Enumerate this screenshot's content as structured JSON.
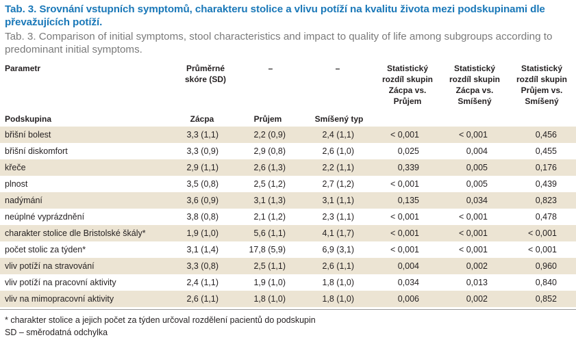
{
  "title": "Tab. 3. Srovnání vstupních symptomů, charakteru stolice a vlivu potíží na kvalitu života mezi podskupinami dle převažujících potíží.",
  "subtitle": "Tab. 3. Comparison of initial symptoms, stool characteristics and impact to quality of life among subgroups according to predominant initial symptoms.",
  "header": {
    "parametr": "Parametr",
    "score_l1": "Průměrné",
    "score_l2": "skóre (SD)",
    "dash1": "–",
    "dash2": "–",
    "stat1": [
      "Statistický",
      "rozdíl skupin",
      "Zácpa vs.",
      "Průjem"
    ],
    "stat2": [
      "Statistický",
      "rozdíl skupin",
      "Zácpa vs.",
      "Smíšený"
    ],
    "stat3": [
      "Statistický",
      "rozdíl skupin",
      "Průjem vs.",
      "Smíšený"
    ],
    "podskupina": "Podskupina",
    "zacpa": "Zácpa",
    "prujem": "Průjem",
    "smiseny": "Smíšený typ"
  },
  "rows": [
    {
      "param": "břišní bolest",
      "zacpa": "3,3 (1,1)",
      "prujem": "2,2 (0,9)",
      "smiseny": "2,4 (1,1)",
      "p1": "< 0,001",
      "p2": "< 0,001",
      "p3": "0,456"
    },
    {
      "param": "břišní diskomfort",
      "zacpa": "3,3 (0,9)",
      "prujem": "2,9 (0,8)",
      "smiseny": "2,6 (1,0)",
      "p1": "0,025",
      "p2": "0,004",
      "p3": "0,455"
    },
    {
      "param": "křeče",
      "zacpa": "2,9 (1,1)",
      "prujem": "2,6 (1,3)",
      "smiseny": "2,2 (1,1)",
      "p1": "0,339",
      "p2": "0,005",
      "p3": "0,176"
    },
    {
      "param": "plnost",
      "zacpa": "3,5 (0,8)",
      "prujem": "2,5 (1,2)",
      "smiseny": "2,7 (1,2)",
      "p1": "< 0,001",
      "p2": "0,005",
      "p3": "0,439"
    },
    {
      "param": "nadýmání",
      "zacpa": "3,6 (0,9)",
      "prujem": "3,1 (1,3)",
      "smiseny": "3,1 (1,1)",
      "p1": "0,135",
      "p2": "0,034",
      "p3": "0,823"
    },
    {
      "param": "neúplné vyprázdnění",
      "zacpa": "3,8 (0,8)",
      "prujem": "2,1 (1,2)",
      "smiseny": "2,3 (1,1)",
      "p1": "< 0,001",
      "p2": "< 0,001",
      "p3": "0,478"
    },
    {
      "param": "charakter stolice dle Bristolské škály*",
      "zacpa": "1,9 (1,0)",
      "prujem": "5,6 (1,1)",
      "smiseny": "4,1 (1,7)",
      "p1": "< 0,001",
      "p2": "< 0,001",
      "p3": "< 0,001"
    },
    {
      "param": "počet stolic za týden*",
      "zacpa": "3,1 (1,4)",
      "prujem": "17,8 (5,9)",
      "smiseny": "6,9 (3,1)",
      "p1": "< 0,001",
      "p2": "< 0,001",
      "p3": "< 0,001"
    },
    {
      "param": "vliv potíží na stravování",
      "zacpa": "3,3 (0,8)",
      "prujem": "2,5 (1,1)",
      "smiseny": "2,6 (1,1)",
      "p1": "0,004",
      "p2": "0,002",
      "p3": "0,960"
    },
    {
      "param": "vliv potíží na pracovní aktivity",
      "zacpa": "2,4 (1,1)",
      "prujem": "1,9 (1,0)",
      "smiseny": "1,8 (1,0)",
      "p1": "0,034",
      "p2": "0,013",
      "p3": "0,840"
    },
    {
      "param": "vliv na mimopracovní aktivity",
      "zacpa": "2,6 (1,1)",
      "prujem": "1,8 (1,0)",
      "smiseny": "1,8 (1,0)",
      "p1": "0,006",
      "p2": "0,002",
      "p3": "0,852"
    }
  ],
  "footnotes": [
    "* charakter stolice a jejich počet za týden určoval rozdělení pacientů do podskupin",
    "SD – směrodatná odchylka"
  ]
}
